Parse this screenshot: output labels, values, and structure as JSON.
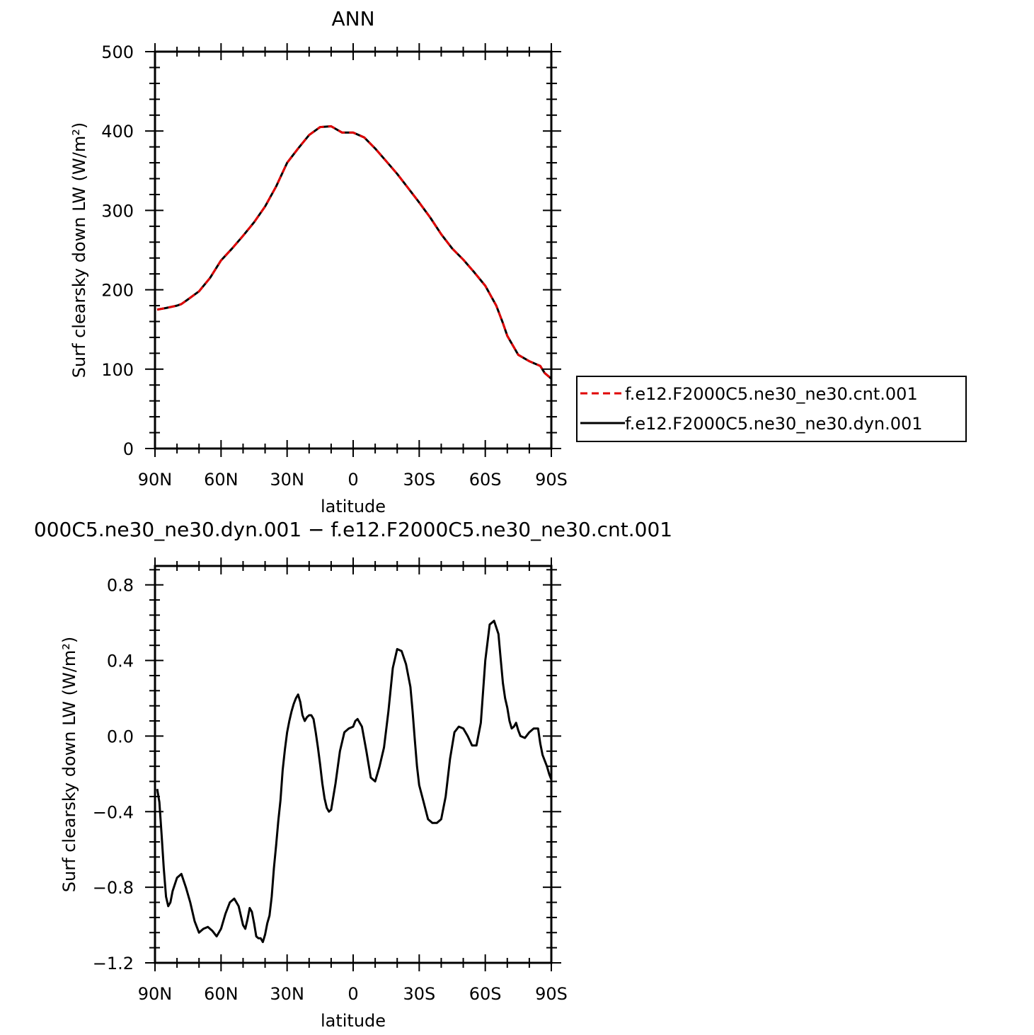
{
  "chart_data": [
    {
      "type": "line",
      "title": "ANN",
      "xlabel": "latitude",
      "ylabel": "Surf clearsky down LW (W/m²)",
      "xlim": [
        90,
        -90
      ],
      "ylim": [
        0,
        500
      ],
      "xticks": [
        {
          "value": 90,
          "label": "90N"
        },
        {
          "value": 60,
          "label": "60N"
        },
        {
          "value": 30,
          "label": "30N"
        },
        {
          "value": 0,
          "label": "0"
        },
        {
          "value": -30,
          "label": "30S"
        },
        {
          "value": -60,
          "label": "60S"
        },
        {
          "value": -90,
          "label": "90S"
        }
      ],
      "yticks": [
        {
          "value": 0,
          "label": "0"
        },
        {
          "value": 100,
          "label": "100"
        },
        {
          "value": 200,
          "label": "200"
        },
        {
          "value": 300,
          "label": "300"
        },
        {
          "value": 400,
          "label": "400"
        },
        {
          "value": 500,
          "label": "500"
        }
      ],
      "grid": false,
      "legend_position": "right",
      "x": [
        89,
        85,
        80,
        78,
        75,
        70,
        65,
        60,
        55,
        50,
        45,
        40,
        35,
        30,
        25,
        20,
        15,
        10,
        5,
        0,
        -5,
        -10,
        -15,
        -20,
        -25,
        -30,
        -35,
        -40,
        -45,
        -50,
        -55,
        -60,
        -65,
        -68,
        -70,
        -75,
        -80,
        -85,
        -87,
        -90
      ],
      "series": [
        {
          "name": "f.e12.F2000C5.ne30_ne30.cnt.001",
          "color": "#e00000",
          "dash": "dashed",
          "values": [
            175,
            177,
            180,
            182,
            188,
            198,
            215,
            237,
            252,
            268,
            285,
            305,
            330,
            360,
            378,
            395,
            405,
            406,
            398,
            398,
            392,
            378,
            362,
            346,
            328,
            310,
            291,
            270,
            252,
            238,
            222,
            205,
            180,
            158,
            142,
            118,
            110,
            104,
            95,
            88
          ]
        },
        {
          "name": "f.e12.F2000C5.ne30_ne30.dyn.001",
          "color": "#000000",
          "dash": "solid",
          "values": [
            175,
            177,
            180,
            182,
            188,
            198,
            215,
            237,
            252,
            268,
            285,
            305,
            330,
            360,
            378,
            395,
            405,
            406,
            398,
            398,
            392,
            378,
            362,
            346,
            328,
            310,
            291,
            270,
            252,
            238,
            222,
            205,
            180,
            158,
            142,
            118,
            110,
            104,
            95,
            88
          ]
        }
      ]
    },
    {
      "type": "line",
      "title": "000C5.ne30_ne30.dyn.001 − f.e12.F2000C5.ne30_ne30.cnt.001",
      "xlabel": "latitude",
      "ylabel": "Surf clearsky down LW (W/m²)",
      "xlim": [
        90,
        -90
      ],
      "ylim": [
        -1.2,
        0.9
      ],
      "xticks": [
        {
          "value": 90,
          "label": "90N"
        },
        {
          "value": 60,
          "label": "60N"
        },
        {
          "value": 30,
          "label": "30N"
        },
        {
          "value": 0,
          "label": "0"
        },
        {
          "value": -30,
          "label": "30S"
        },
        {
          "value": -60,
          "label": "60S"
        },
        {
          "value": -90,
          "label": "90S"
        }
      ],
      "yticks": [
        {
          "value": -1.2,
          "label": "−1.2"
        },
        {
          "value": -0.8,
          "label": "−0.8"
        },
        {
          "value": -0.4,
          "label": "−0.4"
        },
        {
          "value": 0.0,
          "label": "0.0"
        },
        {
          "value": 0.4,
          "label": "0.4"
        },
        {
          "value": 0.8,
          "label": "0.8"
        }
      ],
      "grid": false,
      "x": [
        89,
        88,
        87,
        86,
        85,
        84,
        83,
        82,
        80,
        78,
        76,
        74,
        72,
        70,
        68,
        66,
        64,
        62,
        60,
        58,
        56,
        54,
        52,
        50,
        49,
        48,
        47,
        46,
        45,
        44,
        43,
        42,
        41,
        40,
        39,
        38,
        37,
        36,
        35,
        34,
        33,
        32,
        31,
        30,
        29,
        28,
        27,
        26,
        25,
        24,
        23,
        22,
        21,
        20,
        19,
        18,
        17,
        16,
        15,
        14,
        13,
        12,
        11,
        10,
        8,
        6,
        4,
        2,
        0,
        -1,
        -2,
        -4,
        -6,
        -8,
        -10,
        -11,
        -12,
        -14,
        -16,
        -18,
        -20,
        -22,
        -24,
        -26,
        -27,
        -28,
        -29,
        -30,
        -32,
        -34,
        -36,
        -38,
        -40,
        -42,
        -44,
        -46,
        -48,
        -50,
        -52,
        -54,
        -56,
        -58,
        -60,
        -62,
        -64,
        -66,
        -67,
        -68,
        -69,
        -70,
        -71,
        -72,
        -73,
        -74,
        -75,
        -76,
        -78,
        -80,
        -82,
        -84,
        -85,
        -86,
        -87,
        -88,
        -89,
        -90
      ],
      "series": [
        {
          "name": "",
          "color": "#000000",
          "dash": "solid",
          "values": [
            -0.28,
            -0.35,
            -0.52,
            -0.7,
            -0.85,
            -0.9,
            -0.88,
            -0.82,
            -0.75,
            -0.73,
            -0.8,
            -0.88,
            -0.98,
            -1.04,
            -1.02,
            -1.01,
            -1.03,
            -1.06,
            -1.02,
            -0.94,
            -0.88,
            -0.86,
            -0.9,
            -1.0,
            -1.02,
            -0.97,
            -0.91,
            -0.93,
            -0.99,
            -1.06,
            -1.07,
            -1.07,
            -1.09,
            -1.05,
            -0.99,
            -0.95,
            -0.85,
            -0.7,
            -0.58,
            -0.45,
            -0.34,
            -0.18,
            -0.07,
            0.02,
            0.08,
            0.13,
            0.17,
            0.2,
            0.22,
            0.18,
            0.11,
            0.08,
            0.1,
            0.11,
            0.11,
            0.09,
            0.02,
            -0.06,
            -0.15,
            -0.25,
            -0.33,
            -0.38,
            -0.4,
            -0.39,
            -0.25,
            -0.08,
            0.02,
            0.04,
            0.05,
            0.08,
            0.09,
            0.05,
            -0.08,
            -0.22,
            -0.24,
            -0.2,
            -0.16,
            -0.06,
            0.13,
            0.36,
            0.46,
            0.45,
            0.38,
            0.26,
            0.13,
            -0.02,
            -0.16,
            -0.26,
            -0.35,
            -0.44,
            -0.46,
            -0.46,
            -0.44,
            -0.32,
            -0.12,
            0.02,
            0.05,
            0.04,
            0.0,
            -0.05,
            -0.05,
            0.07,
            0.4,
            0.59,
            0.61,
            0.54,
            0.41,
            0.28,
            0.2,
            0.15,
            0.08,
            0.04,
            0.05,
            0.07,
            0.03,
            0.0,
            -0.01,
            0.02,
            0.04,
            0.04,
            -0.04,
            -0.1,
            -0.13,
            -0.16,
            -0.2,
            -0.23
          ]
        }
      ]
    }
  ]
}
